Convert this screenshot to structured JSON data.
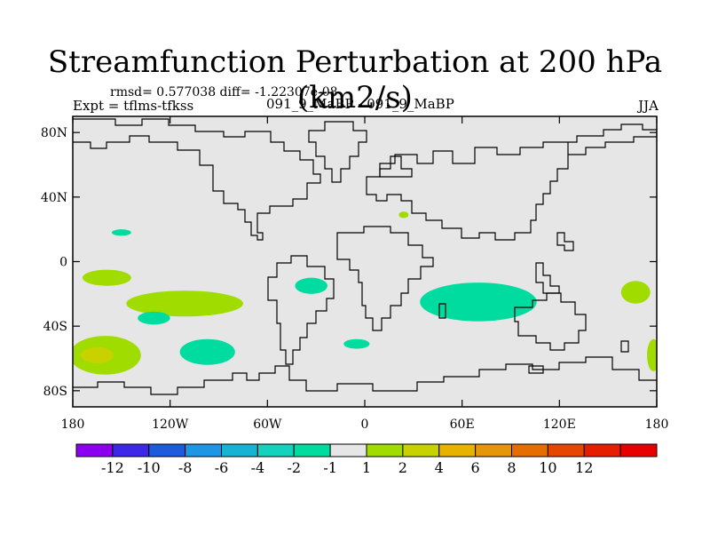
{
  "title": "Streamfunction Perturbation at 200 hPa (km2/s)",
  "stats": "rmsd= 0.577038 diff= -1.22307e-08",
  "experiment": "Expt = tflms-tfkss",
  "comparison": "091_9_MaBP - 091_9_MaBP",
  "season": "JJA",
  "map": {
    "background_color": "#e6e6e6",
    "lon_range": [
      -180,
      180
    ],
    "lat_range": [
      -90,
      90
    ],
    "lat_ticks": [
      {
        "value": 80,
        "label": "80N"
      },
      {
        "value": 40,
        "label": "40N"
      },
      {
        "value": 0,
        "label": "0"
      },
      {
        "value": -40,
        "label": "40S"
      },
      {
        "value": -80,
        "label": "80S"
      }
    ],
    "lon_ticks": [
      {
        "value": -180,
        "label": "180"
      },
      {
        "value": -120,
        "label": "120W"
      },
      {
        "value": -60,
        "label": "60W"
      },
      {
        "value": 0,
        "label": "0"
      },
      {
        "value": 60,
        "label": "60E"
      },
      {
        "value": 120,
        "label": "120E"
      },
      {
        "value": 180,
        "label": "180"
      }
    ],
    "anomalies": [
      {
        "lon": -159,
        "lat": -10,
        "rlon": 15,
        "rlat": 5,
        "level": "2"
      },
      {
        "lon": -111,
        "lat": -26,
        "rlon": 36,
        "rlat": 8,
        "level": "2"
      },
      {
        "lon": -130,
        "lat": -35,
        "rlon": 10,
        "rlat": 4,
        "level": "-2"
      },
      {
        "lon": -160,
        "lat": -58,
        "rlon": 22,
        "rlat": 12,
        "level": "2"
      },
      {
        "lon": -165,
        "lat": -58,
        "rlon": 10,
        "rlat": 5,
        "level": "4"
      },
      {
        "lon": -97,
        "lat": -56,
        "rlon": 17,
        "rlat": 8,
        "level": "-2"
      },
      {
        "lon": -150,
        "lat": 18,
        "rlon": 6,
        "rlat": 2,
        "level": "-2"
      },
      {
        "lon": -33,
        "lat": -15,
        "rlon": 10,
        "rlat": 5,
        "level": "-2"
      },
      {
        "lon": -5,
        "lat": -51,
        "rlon": 8,
        "rlat": 3,
        "level": "-2"
      },
      {
        "lon": 70,
        "lat": -25,
        "rlon": 36,
        "rlat": 12,
        "level": "-2"
      },
      {
        "lon": 24,
        "lat": 29,
        "rlon": 3,
        "rlat": 2,
        "level": "2"
      },
      {
        "lon": 167,
        "lat": -19,
        "rlon": 9,
        "rlat": 7,
        "level": "2"
      },
      {
        "lon": 178,
        "lat": -58,
        "rlon": 4,
        "rlat": 10,
        "level": "2"
      }
    ]
  },
  "colorbar": {
    "colors": [
      "#8c00f0",
      "#3c28e6",
      "#1e5adc",
      "#1e96e6",
      "#14b4d2",
      "#14d2be",
      "#00dca0",
      "#e6e6e6",
      "#a0dc00",
      "#c8d200",
      "#e6b400",
      "#e6960a",
      "#e66e00",
      "#e64600",
      "#e61e00",
      "#e60000"
    ],
    "labels": [
      "-12",
      "-10",
      "-8",
      "-6",
      "-4",
      "-2",
      "-1",
      "1",
      "2",
      "4",
      "6",
      "8",
      "10",
      "12"
    ]
  },
  "level_colors": {
    "-2": "#00dca0",
    "2": "#a0dc00",
    "4": "#c8d200"
  }
}
